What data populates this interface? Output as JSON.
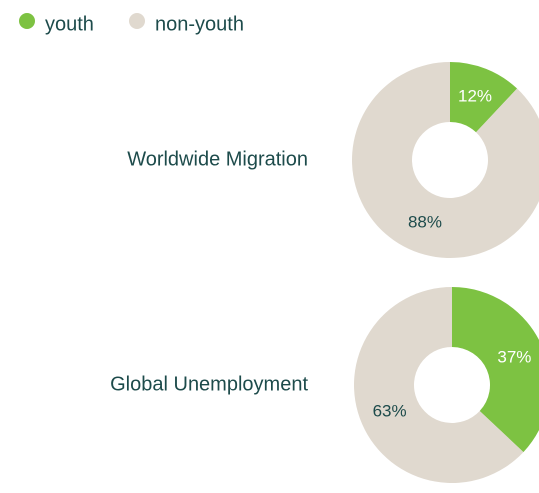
{
  "chart_data": {
    "type": "donut",
    "categories": [
      "youth",
      "non-youth"
    ],
    "colors": [
      "#7dc242",
      "#e0d9cf"
    ],
    "series": [
      {
        "name": "Worldwide Migration",
        "values": [
          12,
          88
        ],
        "value_labels": [
          "12%",
          "88%"
        ]
      },
      {
        "name": "Global Unemployment",
        "values": [
          37,
          63
        ],
        "value_labels": [
          "37%",
          "63%"
        ]
      }
    ]
  }
}
